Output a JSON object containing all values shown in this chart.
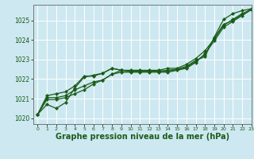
{
  "bg_color": "#cde8f0",
  "grid_color": "#ffffff",
  "line_color": "#1a5c1a",
  "xlabel": "Graphe pression niveau de la mer (hPa)",
  "xlabel_fontsize": 7,
  "xlim": [
    -0.5,
    23
  ],
  "ylim": [
    1019.7,
    1025.8
  ],
  "yticks": [
    1020,
    1021,
    1022,
    1023,
    1024,
    1025
  ],
  "xticks": [
    0,
    1,
    2,
    3,
    4,
    5,
    6,
    7,
    8,
    9,
    10,
    11,
    12,
    13,
    14,
    15,
    16,
    17,
    18,
    19,
    20,
    21,
    22,
    23
  ],
  "series": [
    [
      1020.2,
      1020.7,
      1020.5,
      1020.8,
      1021.55,
      1022.1,
      1022.2,
      1022.3,
      1022.55,
      1022.45,
      1022.4,
      1022.4,
      1022.4,
      1022.4,
      1022.4,
      1022.5,
      1022.65,
      1022.95,
      1023.15,
      1024.15,
      1025.05,
      1025.35,
      1025.5,
      1025.6
    ],
    [
      1020.2,
      1020.95,
      1020.95,
      1021.05,
      1021.25,
      1021.45,
      1021.75,
      1021.95,
      1022.25,
      1022.45,
      1022.45,
      1022.45,
      1022.45,
      1022.45,
      1022.55,
      1022.55,
      1022.75,
      1023.05,
      1023.45,
      1024.05,
      1024.75,
      1025.05,
      1025.35,
      1025.55
    ],
    [
      1020.2,
      1021.05,
      1021.05,
      1021.15,
      1021.45,
      1021.65,
      1021.85,
      1021.95,
      1022.25,
      1022.35,
      1022.35,
      1022.35,
      1022.35,
      1022.35,
      1022.35,
      1022.45,
      1022.55,
      1022.85,
      1023.3,
      1023.95,
      1024.65,
      1024.95,
      1025.25,
      1025.55
    ],
    [
      1020.2,
      1021.15,
      1021.25,
      1021.35,
      1021.65,
      1022.15,
      1022.15,
      1022.3,
      1022.55,
      1022.45,
      1022.4,
      1022.4,
      1022.4,
      1022.4,
      1022.45,
      1022.5,
      1022.6,
      1022.9,
      1023.25,
      1024.1,
      1024.8,
      1025.0,
      1025.3,
      1025.6
    ]
  ]
}
